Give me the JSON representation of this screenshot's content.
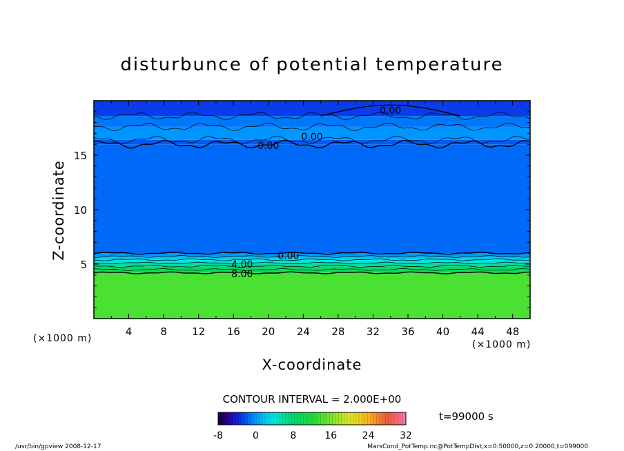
{
  "chart_data": {
    "type": "heatmap",
    "title": "disturbunce of potential temperature",
    "xlabel": "X-coordinate",
    "ylabel": "Z-coordinate",
    "x_unit_left": "(×1000 m)",
    "x_unit_right": "(×1000 m)",
    "xlim": [
      0,
      50
    ],
    "ylim": [
      0,
      20
    ],
    "x_ticks": [
      4,
      8,
      12,
      16,
      20,
      24,
      28,
      32,
      36,
      40,
      44,
      48
    ],
    "y_ticks": [
      5,
      10,
      15
    ],
    "contour_labels": [
      {
        "text": "0.00",
        "x": 34.0,
        "y": 19.1
      },
      {
        "text": "0.00",
        "x": 25.0,
        "y": 16.7
      },
      {
        "text": "0.00",
        "x": 20.0,
        "y": 15.9
      },
      {
        "text": "0.00",
        "x": 22.3,
        "y": 5.8
      },
      {
        "text": "4.00",
        "x": 17.0,
        "y": 5.0
      },
      {
        "text": "8.00",
        "x": 17.0,
        "y": 4.1
      }
    ],
    "layers": [
      {
        "z_from": 0,
        "z_to": 4.2,
        "value": 14
      },
      {
        "z_from": 4.2,
        "z_to": 4.5,
        "value": 10
      },
      {
        "z_from": 4.5,
        "z_to": 4.8,
        "value": 8
      },
      {
        "z_from": 4.8,
        "z_to": 5.1,
        "value": 6
      },
      {
        "z_from": 5.1,
        "z_to": 5.4,
        "value": 4
      },
      {
        "z_from": 5.4,
        "z_to": 5.7,
        "value": 2
      },
      {
        "z_from": 5.7,
        "z_to": 6.0,
        "value": 0
      },
      {
        "z_from": 6.0,
        "z_to": 16.0,
        "value": -1.5
      },
      {
        "z_from": 16.0,
        "z_to": 16.4,
        "value": -2
      },
      {
        "z_from": 16.4,
        "z_to": 17.6,
        "value": 0
      },
      {
        "z_from": 17.6,
        "z_to": 18.6,
        "value": -1
      },
      {
        "z_from": 18.6,
        "z_to": 20.0,
        "value": -3
      }
    ],
    "colorbar": {
      "min": -8,
      "max": 32,
      "ticks": [
        "-8",
        "0",
        "8",
        "16",
        "24",
        "32"
      ]
    },
    "contour_interval": "CONTOUR INTERVAL = 2.000E+00",
    "time": "t=99000 s"
  },
  "footer": {
    "left": "/usr/bin/gpview   2008-12-17",
    "right": "MarsCond_PotTemp.nc@PotTempDist,x=0:50000,z=0:20000,t=099000"
  },
  "colors": {
    "background": "#ffffff",
    "frame": "#000000"
  }
}
